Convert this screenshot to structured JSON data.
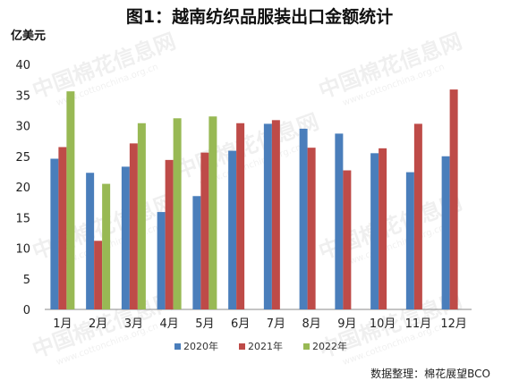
{
  "watermark": {
    "line1": "中国棉花信息网",
    "line2": "www.cottonchina.org.cn"
  },
  "chart_data": {
    "type": "bar",
    "title": "图1：越南纺织品服装出口金额统计",
    "ylabel": "亿美元",
    "ylim": [
      0,
      40
    ],
    "yticks": [
      0,
      5,
      10,
      15,
      20,
      25,
      30,
      35,
      40
    ],
    "grid": false,
    "legend_position": "bottom",
    "categories": [
      "1月",
      "2月",
      "3月",
      "4月",
      "5月",
      "6月",
      "7月",
      "8月",
      "9月",
      "10月",
      "11月",
      "12月"
    ],
    "series": [
      {
        "name": "2020年",
        "color": "#4a7ebb",
        "values": [
          24.6,
          22.3,
          23.3,
          15.9,
          18.5,
          25.9,
          30.3,
          29.5,
          28.7,
          25.5,
          22.4,
          25.0
        ]
      },
      {
        "name": "2021年",
        "color": "#be4b48",
        "values": [
          26.5,
          11.2,
          27.1,
          24.4,
          25.6,
          30.4,
          30.9,
          26.4,
          22.7,
          26.3,
          30.3,
          35.9
        ]
      },
      {
        "name": "2022年",
        "color": "#98b954",
        "values": [
          35.6,
          20.5,
          30.4,
          31.2,
          31.5,
          null,
          null,
          null,
          null,
          null,
          null,
          null
        ]
      }
    ],
    "source": "数据整理：棉花展望BCO"
  }
}
